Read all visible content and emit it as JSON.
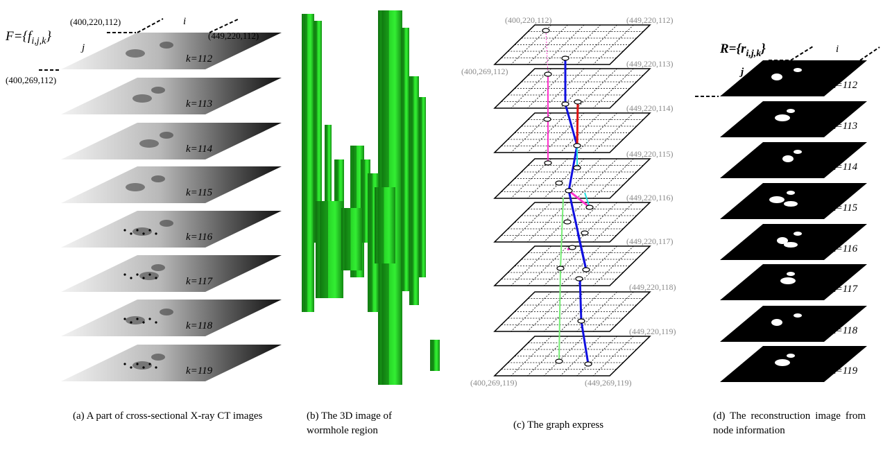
{
  "panel_a": {
    "formula_main": "F={f",
    "formula_sub": "i,j,k",
    "formula_close": "}",
    "axis_i": "i",
    "axis_j": "j",
    "coord_top_left": "(400,220,112)",
    "coord_top_right": "(449,220,112)",
    "coord_bottom_left": "(400,269,112)",
    "slice_labels": [
      "k=112",
      "k=113",
      "k=114",
      "k=115",
      "k=116",
      "k=117",
      "k=118",
      "k=119"
    ],
    "caption": "(a) A part of cross-sectional X-ray CT images"
  },
  "panel_b": {
    "caption": "(b) The 3D image of wormhole region",
    "colors": {
      "wormhole": "#22cc22",
      "wormhole_dark": "#0f6f0f"
    }
  },
  "panel_c": {
    "coord_top_left": "(400,220,112)",
    "layer_coords": [
      "(449,220,112)",
      "(449,220,113)",
      "(449,220,114)",
      "(449,220,115)",
      "(449,220,116)",
      "(449,220,117)",
      "(449,220,118)",
      "(449,220,119)"
    ],
    "coord_left_112": "(400,269,112)",
    "coord_bottom_left": "(400,269,119)",
    "coord_bottom_right": "(449,269,119)",
    "caption": "(c) The graph express",
    "colors": {
      "edge_blue": "#1010e0",
      "edge_red": "#e01010",
      "edge_magenta": "#ff33cc",
      "edge_cyan": "#22dddd",
      "edge_green": "#77ee77"
    }
  },
  "panel_d": {
    "formula_main": "R={r",
    "formula_sub": "i,j,k",
    "formula_close": "}",
    "axis_i": "i",
    "axis_j": "j",
    "slice_labels": [
      "k=112",
      "k=113",
      "k=114",
      "k=115",
      "k=116",
      "k=117",
      "k=118",
      "k=119"
    ],
    "caption": "(d) The reconstruction image from node information"
  }
}
